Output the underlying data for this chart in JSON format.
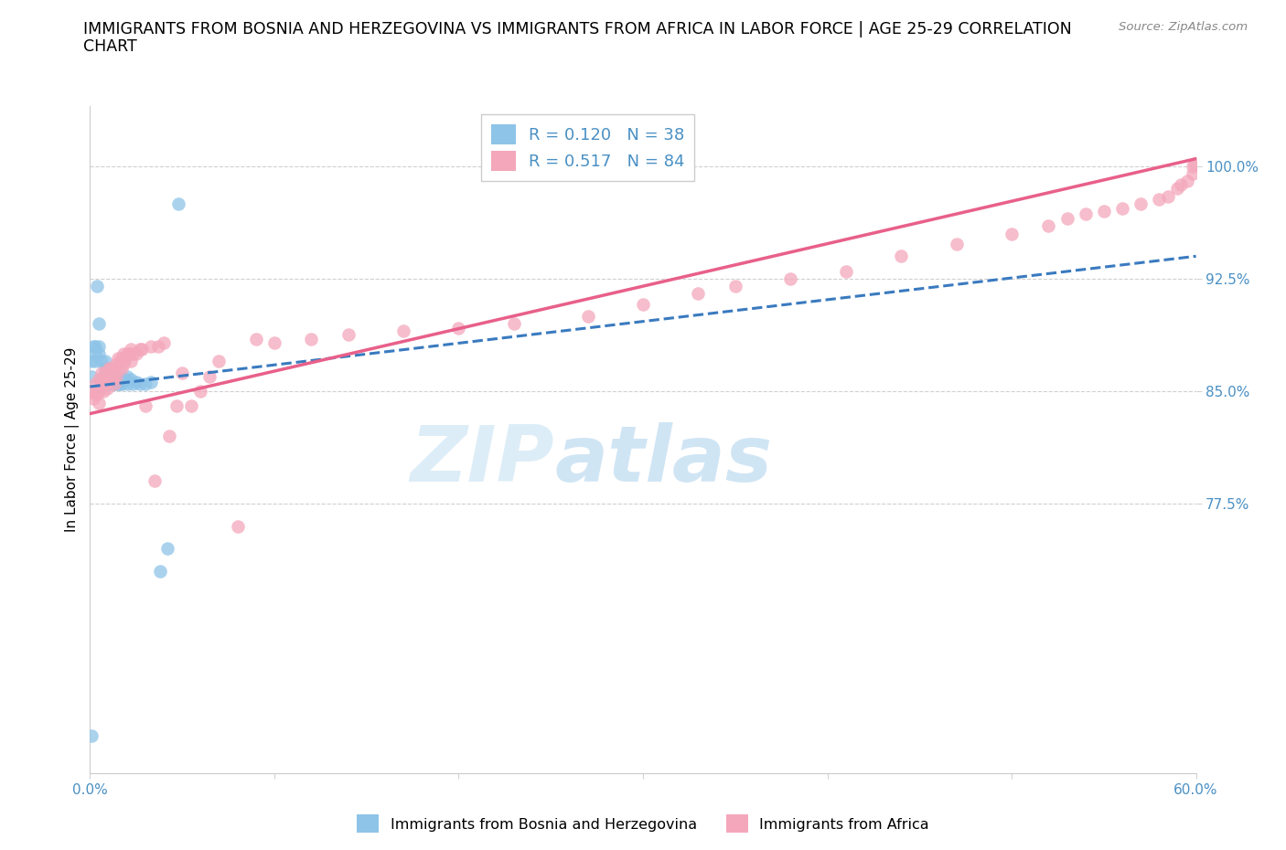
{
  "title": "IMMIGRANTS FROM BOSNIA AND HERZEGOVINA VS IMMIGRANTS FROM AFRICA IN LABOR FORCE | AGE 25-29 CORRELATION\nCHART",
  "source_text": "Source: ZipAtlas.com",
  "ylabel": "In Labor Force | Age 25-29",
  "legend_label_blue": "Immigrants from Bosnia and Herzegovina",
  "legend_label_pink": "Immigrants from Africa",
  "r_blue": 0.12,
  "n_blue": 38,
  "r_pink": 0.517,
  "n_pink": 84,
  "xlim": [
    0.0,
    0.6
  ],
  "ylim": [
    0.595,
    1.04
  ],
  "yticks": [
    0.775,
    0.85,
    0.925,
    1.0
  ],
  "yticklabels": [
    "77.5%",
    "85.0%",
    "92.5%",
    "100.0%"
  ],
  "xtick_vals": [
    0.0,
    0.1,
    0.2,
    0.3,
    0.4,
    0.5,
    0.6
  ],
  "xticklabels": [
    "0.0%",
    "",
    "",
    "",
    "",
    "",
    "60.0%"
  ],
  "watermark_line1": "ZIP",
  "watermark_line2": "atlas",
  "color_blue": "#8ec4e8",
  "color_pink": "#f4a7bb",
  "color_blue_line": "#3a7abf",
  "color_pink_line": "#e8608a",
  "color_label": "#4a90c4",
  "blue_x": [
    0.001,
    0.001,
    0.001,
    0.002,
    0.003,
    0.003,
    0.003,
    0.004,
    0.005,
    0.005,
    0.005,
    0.006,
    0.007,
    0.008,
    0.008,
    0.009,
    0.01,
    0.01,
    0.011,
    0.012,
    0.013,
    0.014,
    0.015,
    0.016,
    0.017,
    0.018,
    0.019,
    0.02,
    0.02,
    0.022,
    0.023,
    0.025,
    0.027,
    0.03,
    0.033,
    0.038,
    0.042,
    0.048
  ],
  "blue_y": [
    0.62,
    0.86,
    0.87,
    0.88,
    0.88,
    0.875,
    0.87,
    0.92,
    0.895,
    0.88,
    0.875,
    0.87,
    0.86,
    0.87,
    0.865,
    0.86,
    0.86,
    0.855,
    0.855,
    0.86,
    0.855,
    0.855,
    0.855,
    0.855,
    0.855,
    0.858,
    0.858,
    0.855,
    0.86,
    0.858,
    0.855,
    0.856,
    0.855,
    0.855,
    0.856,
    0.73,
    0.745,
    0.975
  ],
  "pink_x": [
    0.001,
    0.002,
    0.003,
    0.003,
    0.004,
    0.005,
    0.005,
    0.005,
    0.006,
    0.006,
    0.007,
    0.007,
    0.008,
    0.008,
    0.009,
    0.01,
    0.01,
    0.011,
    0.011,
    0.012,
    0.012,
    0.013,
    0.013,
    0.014,
    0.014,
    0.015,
    0.015,
    0.016,
    0.017,
    0.017,
    0.018,
    0.018,
    0.019,
    0.02,
    0.021,
    0.022,
    0.022,
    0.023,
    0.025,
    0.027,
    0.028,
    0.03,
    0.033,
    0.035,
    0.037,
    0.04,
    0.043,
    0.047,
    0.05,
    0.055,
    0.06,
    0.065,
    0.07,
    0.08,
    0.09,
    0.1,
    0.12,
    0.14,
    0.17,
    0.2,
    0.23,
    0.27,
    0.3,
    0.33,
    0.35,
    0.38,
    0.41,
    0.44,
    0.47,
    0.5,
    0.52,
    0.53,
    0.54,
    0.55,
    0.56,
    0.57,
    0.58,
    0.585,
    0.59,
    0.592,
    0.595,
    0.598,
    0.598,
    0.599
  ],
  "pink_y": [
    0.85,
    0.845,
    0.855,
    0.848,
    0.848,
    0.858,
    0.85,
    0.842,
    0.862,
    0.855,
    0.858,
    0.85,
    0.862,
    0.855,
    0.852,
    0.865,
    0.858,
    0.865,
    0.858,
    0.865,
    0.858,
    0.862,
    0.855,
    0.868,
    0.86,
    0.872,
    0.865,
    0.87,
    0.872,
    0.865,
    0.875,
    0.868,
    0.872,
    0.875,
    0.875,
    0.878,
    0.87,
    0.875,
    0.875,
    0.878,
    0.878,
    0.84,
    0.88,
    0.79,
    0.88,
    0.882,
    0.82,
    0.84,
    0.862,
    0.84,
    0.85,
    0.86,
    0.87,
    0.76,
    0.885,
    0.882,
    0.885,
    0.888,
    0.89,
    0.892,
    0.895,
    0.9,
    0.908,
    0.915,
    0.92,
    0.925,
    0.93,
    0.94,
    0.948,
    0.955,
    0.96,
    0.965,
    0.968,
    0.97,
    0.972,
    0.975,
    0.978,
    0.98,
    0.985,
    0.988,
    0.99,
    0.995,
    1.0,
    1.002
  ],
  "blue_line_x": [
    0.0,
    0.6
  ],
  "blue_line_y": [
    0.853,
    0.94
  ],
  "pink_line_x": [
    0.0,
    0.6
  ],
  "pink_line_y": [
    0.835,
    1.005
  ]
}
